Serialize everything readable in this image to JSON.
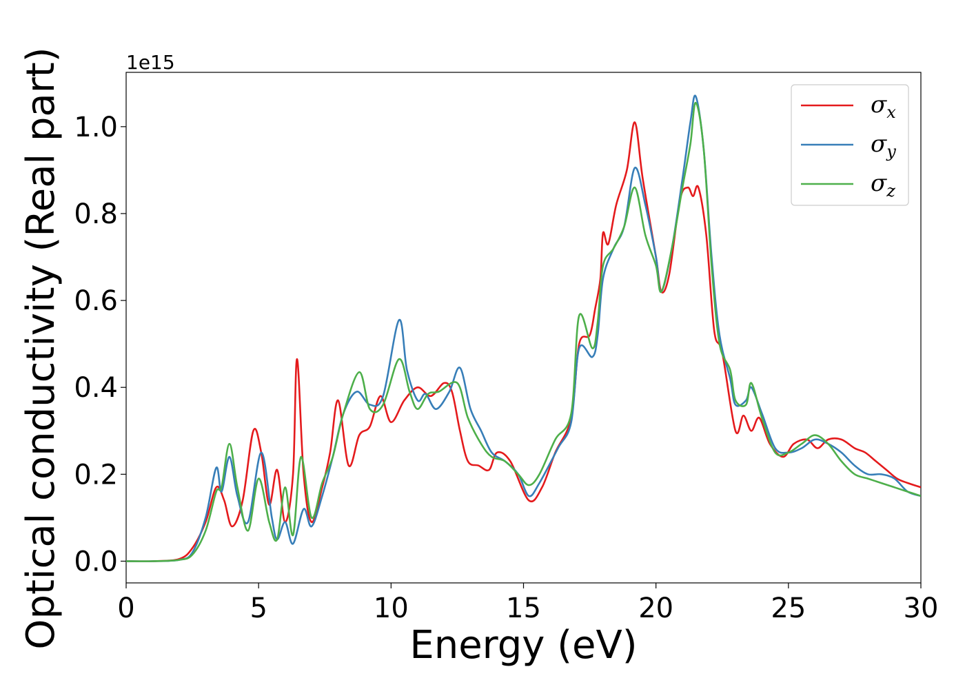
{
  "chart_data": {
    "type": "line",
    "xlabel": "Energy (eV)",
    "ylabel": "Optical conductivity (Real part)",
    "y_offset_label": "1e15",
    "xlim": [
      0,
      30
    ],
    "ylim": [
      -0.05,
      1.125
    ],
    "x_ticks": [
      0,
      5,
      10,
      15,
      20,
      25,
      30
    ],
    "x_tick_labels": [
      "0",
      "5",
      "10",
      "15",
      "20",
      "25",
      "30"
    ],
    "y_ticks": [
      0.0,
      0.2,
      0.4,
      0.6,
      0.8,
      1.0
    ],
    "y_tick_labels": [
      "0.0",
      "0.2",
      "0.4",
      "0.6",
      "0.8",
      "1.0"
    ],
    "grid": false,
    "legend_position": "top-right",
    "series": [
      {
        "name": "σx",
        "legend_symbol": "σ",
        "legend_subscript": "x",
        "color": "#e41a1c",
        "points": [
          [
            0,
            0
          ],
          [
            1,
            0
          ],
          [
            2,
            0.005
          ],
          [
            2.5,
            0.03
          ],
          [
            3,
            0.09
          ],
          [
            3.4,
            0.17
          ],
          [
            3.7,
            0.14
          ],
          [
            4,
            0.08
          ],
          [
            4.4,
            0.14
          ],
          [
            4.8,
            0.3
          ],
          [
            5.1,
            0.25
          ],
          [
            5.4,
            0.13
          ],
          [
            5.7,
            0.21
          ],
          [
            6.0,
            0.09
          ],
          [
            6.3,
            0.2
          ],
          [
            6.45,
            0.465
          ],
          [
            6.7,
            0.2
          ],
          [
            7.0,
            0.09
          ],
          [
            7.4,
            0.17
          ],
          [
            7.7,
            0.25
          ],
          [
            8.0,
            0.37
          ],
          [
            8.4,
            0.22
          ],
          [
            8.8,
            0.29
          ],
          [
            9.2,
            0.31
          ],
          [
            9.6,
            0.38
          ],
          [
            10,
            0.32
          ],
          [
            10.5,
            0.37
          ],
          [
            11,
            0.4
          ],
          [
            11.5,
            0.38
          ],
          [
            12,
            0.41
          ],
          [
            12.3,
            0.39
          ],
          [
            12.6,
            0.3
          ],
          [
            12.9,
            0.23
          ],
          [
            13.3,
            0.22
          ],
          [
            13.7,
            0.21
          ],
          [
            14,
            0.25
          ],
          [
            14.5,
            0.23
          ],
          [
            15.2,
            0.14
          ],
          [
            15.7,
            0.17
          ],
          [
            16.2,
            0.25
          ],
          [
            16.8,
            0.33
          ],
          [
            17.1,
            0.5
          ],
          [
            17.5,
            0.52
          ],
          [
            17.7,
            0.58
          ],
          [
            17.9,
            0.65
          ],
          [
            18,
            0.755
          ],
          [
            18.2,
            0.73
          ],
          [
            18.5,
            0.82
          ],
          [
            18.9,
            0.9
          ],
          [
            19.2,
            1.01
          ],
          [
            19.5,
            0.88
          ],
          [
            20.0,
            0.7
          ],
          [
            20.2,
            0.62
          ],
          [
            20.5,
            0.66
          ],
          [
            20.9,
            0.83
          ],
          [
            21.2,
            0.86
          ],
          [
            21.4,
            0.84
          ],
          [
            21.6,
            0.86
          ],
          [
            21.9,
            0.75
          ],
          [
            22.2,
            0.53
          ],
          [
            22.5,
            0.48
          ],
          [
            23.0,
            0.3
          ],
          [
            23.3,
            0.335
          ],
          [
            23.6,
            0.3
          ],
          [
            23.9,
            0.33
          ],
          [
            24.3,
            0.27
          ],
          [
            24.8,
            0.24
          ],
          [
            25.2,
            0.27
          ],
          [
            25.7,
            0.28
          ],
          [
            26.1,
            0.26
          ],
          [
            26.5,
            0.28
          ],
          [
            27.0,
            0.28
          ],
          [
            27.5,
            0.26
          ],
          [
            27.9,
            0.25
          ],
          [
            28.3,
            0.23
          ],
          [
            28.7,
            0.21
          ],
          [
            29.1,
            0.19
          ],
          [
            29.5,
            0.18
          ],
          [
            30,
            0.17
          ]
        ]
      },
      {
        "name": "σy",
        "legend_symbol": "σ",
        "legend_subscript": "y",
        "color": "#377eb8",
        "points": [
          [
            0,
            0
          ],
          [
            1,
            0
          ],
          [
            2,
            0.003
          ],
          [
            2.5,
            0.02
          ],
          [
            3,
            0.1
          ],
          [
            3.4,
            0.215
          ],
          [
            3.6,
            0.16
          ],
          [
            3.9,
            0.24
          ],
          [
            4.2,
            0.15
          ],
          [
            4.6,
            0.09
          ],
          [
            5.1,
            0.25
          ],
          [
            5.5,
            0.1
          ],
          [
            5.7,
            0.05
          ],
          [
            6.0,
            0.09
          ],
          [
            6.3,
            0.04
          ],
          [
            6.7,
            0.12
          ],
          [
            7.0,
            0.08
          ],
          [
            7.4,
            0.15
          ],
          [
            7.8,
            0.24
          ],
          [
            8.2,
            0.34
          ],
          [
            8.7,
            0.39
          ],
          [
            9.2,
            0.36
          ],
          [
            9.7,
            0.38
          ],
          [
            10.3,
            0.555
          ],
          [
            10.6,
            0.44
          ],
          [
            11,
            0.37
          ],
          [
            11.3,
            0.385
          ],
          [
            11.7,
            0.35
          ],
          [
            12.2,
            0.39
          ],
          [
            12.6,
            0.445
          ],
          [
            13,
            0.35
          ],
          [
            13.4,
            0.3
          ],
          [
            13.8,
            0.25
          ],
          [
            14.3,
            0.23
          ],
          [
            14.8,
            0.2
          ],
          [
            15.2,
            0.15
          ],
          [
            15.6,
            0.18
          ],
          [
            16.3,
            0.26
          ],
          [
            16.8,
            0.32
          ],
          [
            17.1,
            0.49
          ],
          [
            17.6,
            0.47
          ],
          [
            17.8,
            0.52
          ],
          [
            18.0,
            0.65
          ],
          [
            18.4,
            0.72
          ],
          [
            18.8,
            0.77
          ],
          [
            19.2,
            0.905
          ],
          [
            19.6,
            0.82
          ],
          [
            20.0,
            0.7
          ],
          [
            20.2,
            0.62
          ],
          [
            20.6,
            0.72
          ],
          [
            21.0,
            0.88
          ],
          [
            21.3,
            1.01
          ],
          [
            21.5,
            1.07
          ],
          [
            21.8,
            0.95
          ],
          [
            22.1,
            0.7
          ],
          [
            22.4,
            0.52
          ],
          [
            22.8,
            0.42
          ],
          [
            23.0,
            0.36
          ],
          [
            23.4,
            0.37
          ],
          [
            23.6,
            0.4
          ],
          [
            24.0,
            0.34
          ],
          [
            24.5,
            0.26
          ],
          [
            25.0,
            0.25
          ],
          [
            25.5,
            0.26
          ],
          [
            26.0,
            0.28
          ],
          [
            26.5,
            0.27
          ],
          [
            27.0,
            0.25
          ],
          [
            27.5,
            0.22
          ],
          [
            28.0,
            0.2
          ],
          [
            28.5,
            0.2
          ],
          [
            29.0,
            0.19
          ],
          [
            29.5,
            0.16
          ],
          [
            30,
            0.15
          ]
        ]
      },
      {
        "name": "σz",
        "legend_symbol": "σ",
        "legend_subscript": "z",
        "color": "#4daf4a",
        "points": [
          [
            0,
            0
          ],
          [
            1,
            0
          ],
          [
            2,
            0.003
          ],
          [
            2.5,
            0.015
          ],
          [
            3,
            0.07
          ],
          [
            3.4,
            0.16
          ],
          [
            3.6,
            0.17
          ],
          [
            3.9,
            0.27
          ],
          [
            4.2,
            0.17
          ],
          [
            4.6,
            0.07
          ],
          [
            5.0,
            0.19
          ],
          [
            5.4,
            0.09
          ],
          [
            5.7,
            0.05
          ],
          [
            6.0,
            0.17
          ],
          [
            6.3,
            0.06
          ],
          [
            6.6,
            0.24
          ],
          [
            7.0,
            0.1
          ],
          [
            7.4,
            0.18
          ],
          [
            7.8,
            0.24
          ],
          [
            8.2,
            0.34
          ],
          [
            8.8,
            0.435
          ],
          [
            9.2,
            0.35
          ],
          [
            9.7,
            0.36
          ],
          [
            10.3,
            0.465
          ],
          [
            10.7,
            0.39
          ],
          [
            11,
            0.35
          ],
          [
            11.4,
            0.385
          ],
          [
            11.8,
            0.39
          ],
          [
            12.5,
            0.41
          ],
          [
            12.9,
            0.33
          ],
          [
            13.4,
            0.27
          ],
          [
            13.8,
            0.24
          ],
          [
            14.3,
            0.23
          ],
          [
            14.8,
            0.2
          ],
          [
            15.2,
            0.175
          ],
          [
            15.6,
            0.2
          ],
          [
            16.2,
            0.28
          ],
          [
            16.8,
            0.34
          ],
          [
            17.1,
            0.565
          ],
          [
            17.6,
            0.49
          ],
          [
            17.8,
            0.55
          ],
          [
            18.0,
            0.68
          ],
          [
            18.4,
            0.72
          ],
          [
            18.8,
            0.77
          ],
          [
            19.2,
            0.86
          ],
          [
            19.6,
            0.75
          ],
          [
            20.0,
            0.68
          ],
          [
            20.2,
            0.62
          ],
          [
            20.6,
            0.72
          ],
          [
            21.0,
            0.86
          ],
          [
            21.3,
            0.96
          ],
          [
            21.5,
            1.055
          ],
          [
            21.8,
            0.95
          ],
          [
            22.1,
            0.68
          ],
          [
            22.4,
            0.5
          ],
          [
            22.8,
            0.44
          ],
          [
            23.0,
            0.37
          ],
          [
            23.4,
            0.36
          ],
          [
            23.6,
            0.41
          ],
          [
            24.0,
            0.33
          ],
          [
            24.5,
            0.25
          ],
          [
            25.0,
            0.25
          ],
          [
            25.5,
            0.27
          ],
          [
            26.0,
            0.29
          ],
          [
            26.5,
            0.27
          ],
          [
            27.0,
            0.23
          ],
          [
            27.5,
            0.2
          ],
          [
            28.0,
            0.19
          ],
          [
            28.5,
            0.18
          ],
          [
            29.0,
            0.17
          ],
          [
            29.5,
            0.16
          ],
          [
            30,
            0.15
          ]
        ]
      }
    ]
  }
}
